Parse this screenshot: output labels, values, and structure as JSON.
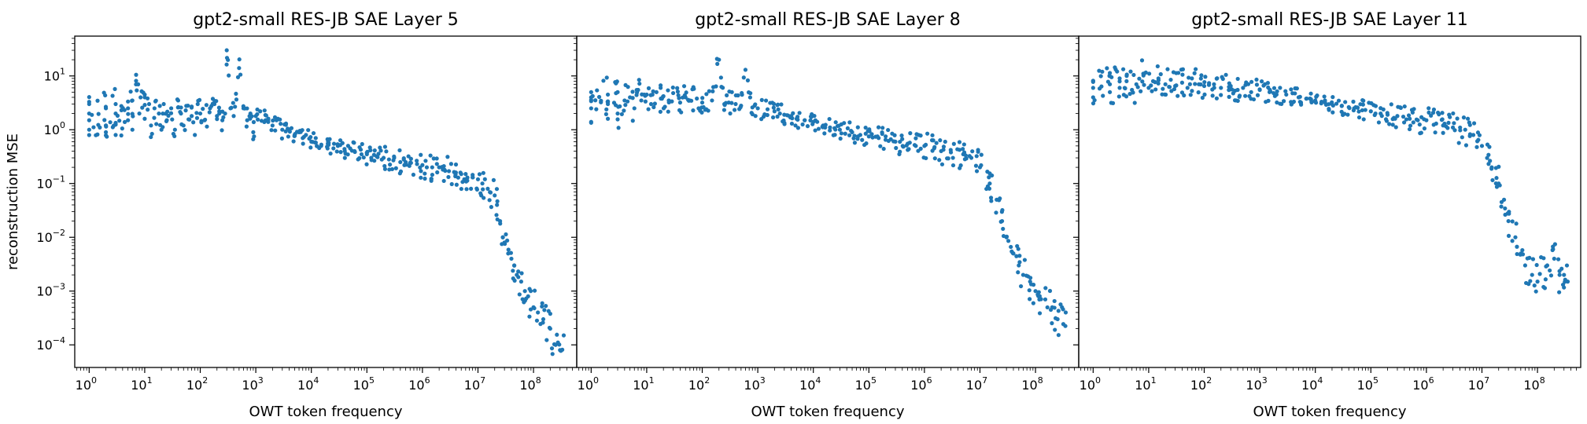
{
  "chart_data": [
    {
      "type": "scatter",
      "title": "gpt2-small RES-JB SAE Layer 5",
      "xlabel": "OWT token frequency",
      "ylabel": "reconstruction MSE",
      "xscale": "log",
      "yscale": "log",
      "xlim": [
        0.55,
        600000000
      ],
      "ylim": [
        3.8e-05,
        55
      ],
      "xticks": [
        {
          "base": "10",
          "exp": "0"
        },
        {
          "base": "10",
          "exp": "1"
        },
        {
          "base": "10",
          "exp": "2"
        },
        {
          "base": "10",
          "exp": "3"
        },
        {
          "base": "10",
          "exp": "4"
        },
        {
          "base": "10",
          "exp": "5"
        },
        {
          "base": "10",
          "exp": "6"
        },
        {
          "base": "10",
          "exp": "7"
        },
        {
          "base": "10",
          "exp": "8"
        }
      ],
      "yticks": [
        {
          "base": "10",
          "exp": "1"
        },
        {
          "base": "10",
          "exp": "0"
        },
        {
          "base": "10",
          "exp": "−1"
        },
        {
          "base": "10",
          "exp": "−2"
        },
        {
          "base": "10",
          "exp": "−3"
        },
        {
          "base": "10",
          "exp": "−4"
        }
      ],
      "color": "#1f77b4",
      "grid": false,
      "series": [
        {
          "x": [
            1,
            1,
            1,
            1,
            2,
            2,
            2,
            3,
            3,
            3,
            5,
            5,
            6,
            6,
            7,
            8,
            10,
            10,
            12,
            13,
            15,
            18,
            20,
            22,
            25,
            30,
            35,
            40,
            45,
            50,
            60,
            70,
            80,
            90,
            100,
            120,
            150,
            180,
            200,
            220,
            250,
            280,
            300,
            350,
            400,
            500,
            600,
            700,
            800,
            900,
            1000,
            1200,
            1500,
            2000,
            2500,
            3000,
            3500,
            4000,
            5000,
            6000,
            7000,
            8000,
            10000,
            12000,
            15000,
            20000,
            25000,
            30000,
            40000,
            50000,
            60000,
            80000,
            100000,
            120000,
            150000,
            200000,
            250000,
            300000,
            400000,
            500000,
            600000,
            800000,
            1000000,
            1200000,
            1500000,
            2000000,
            2500000,
            3000000,
            4000000,
            5000000,
            6000000,
            8000000,
            10000000,
            12000000,
            15000000,
            20000000,
            22000000,
            25000000,
            28000000,
            30000000,
            35000000,
            40000000,
            45000000,
            50000000,
            60000000,
            70000000,
            80000000,
            100000000,
            120000000,
            150000000,
            200000000,
            250000000,
            300000000,
            350000000
          ],
          "y": [
            3.0,
            2.0,
            1.5,
            1.0,
            2.5,
            1.2,
            0.9,
            3.0,
            2.0,
            0.8,
            2.5,
            1.5,
            3.5,
            1.0,
            10.5,
            2.0,
            4.0,
            1.6,
            3.0,
            1.2,
            2.5,
            2.0,
            1.0,
            3.0,
            1.5,
            2.5,
            1.0,
            3.5,
            2.0,
            1.2,
            2.8,
            1.8,
            0.8,
            3.0,
            2.0,
            1.5,
            2.5,
            3.0,
            1.8,
            2.2,
            1.5,
            2.0,
            30.0,
            2.5,
            1.8,
            14.0,
            2.5,
            1.5,
            2.0,
            0.9,
            1.8,
            2.2,
            1.5,
            1.2,
            1.6,
            1.0,
            1.3,
            1.0,
            0.8,
            0.9,
            0.7,
            0.8,
            0.6,
            0.7,
            0.5,
            0.6,
            0.45,
            0.5,
            0.4,
            0.45,
            0.4,
            0.35,
            0.35,
            0.3,
            0.32,
            0.3,
            0.28,
            0.27,
            0.25,
            0.25,
            0.24,
            0.23,
            0.22,
            0.2,
            0.2,
            0.2,
            0.18,
            0.17,
            0.16,
            0.15,
            0.15,
            0.13,
            0.12,
            0.1,
            0.08,
            0.06,
            0.04,
            0.02,
            0.01,
            0.008,
            0.005,
            0.004,
            0.003,
            0.002,
            0.0015,
            0.001,
            0.0008,
            0.0005,
            0.0004,
            0.0003,
            0.0002,
            0.0001,
            8e-05,
            0.00015
          ]
        }
      ]
    },
    {
      "type": "scatter",
      "title": "gpt2-small RES-JB SAE Layer 8",
      "xlabel": "OWT token frequency",
      "ylabel": "",
      "xscale": "log",
      "yscale": "log",
      "xlim": [
        0.55,
        600000000
      ],
      "ylim": [
        3.8e-05,
        55
      ],
      "xticks": [
        {
          "base": "10",
          "exp": "0"
        },
        {
          "base": "10",
          "exp": "1"
        },
        {
          "base": "10",
          "exp": "2"
        },
        {
          "base": "10",
          "exp": "3"
        },
        {
          "base": "10",
          "exp": "4"
        },
        {
          "base": "10",
          "exp": "5"
        },
        {
          "base": "10",
          "exp": "6"
        },
        {
          "base": "10",
          "exp": "7"
        },
        {
          "base": "10",
          "exp": "8"
        }
      ],
      "color": "#1f77b4",
      "grid": false,
      "series": [
        {
          "x": [
            1,
            1,
            1,
            1,
            2,
            2,
            2,
            3,
            3,
            4,
            5,
            6,
            7,
            8,
            10,
            12,
            15,
            18,
            20,
            25,
            30,
            40,
            50,
            60,
            80,
            100,
            150,
            200,
            250,
            300,
            400,
            500,
            600,
            800,
            1000,
            1500,
            2000,
            2500,
            3000,
            4000,
            5000,
            7000,
            10000,
            15000,
            20000,
            30000,
            50000,
            70000,
            100000,
            150000,
            200000,
            300000,
            500000,
            700000,
            1000000,
            1500000,
            2000000,
            3000000,
            5000000,
            7000000,
            10000000,
            15000000,
            20000000,
            25000000,
            30000000,
            40000000,
            50000000,
            60000000,
            80000000,
            100000000,
            150000000,
            200000000,
            250000000,
            300000000,
            350000000
          ],
          "y": [
            5.0,
            4.0,
            1.4,
            2.5,
            4.5,
            3.0,
            1.6,
            5.0,
            2.0,
            3.5,
            4.0,
            2.5,
            5.5,
            3.5,
            4.5,
            3.0,
            5.0,
            3.8,
            4.2,
            3.5,
            4.8,
            3.2,
            4.0,
            3.5,
            3.8,
            3.2,
            3.5,
            20.0,
            3.0,
            3.2,
            3.0,
            2.8,
            13.0,
            2.6,
            2.5,
            2.4,
            2.2,
            2.0,
            1.9,
            1.8,
            1.6,
            1.5,
            1.4,
            1.2,
            1.1,
            1.0,
            0.9,
            0.8,
            0.75,
            0.7,
            0.65,
            0.6,
            0.55,
            0.5,
            0.5,
            0.45,
            0.4,
            0.38,
            0.35,
            0.3,
            0.2,
            0.1,
            0.05,
            0.02,
            0.01,
            0.005,
            0.003,
            0.002,
            0.0015,
            0.001,
            0.0007,
            0.0005,
            0.0003,
            0.0005,
            0.0004
          ]
        }
      ]
    },
    {
      "type": "scatter",
      "title": "gpt2-small RES-JB SAE Layer 11",
      "xlabel": "OWT token frequency",
      "ylabel": "",
      "xscale": "log",
      "yscale": "log",
      "xlim": [
        0.55,
        600000000
      ],
      "ylim": [
        3.8e-05,
        55
      ],
      "xticks": [
        {
          "base": "10",
          "exp": "0"
        },
        {
          "base": "10",
          "exp": "1"
        },
        {
          "base": "10",
          "exp": "2"
        },
        {
          "base": "10",
          "exp": "3"
        },
        {
          "base": "10",
          "exp": "4"
        },
        {
          "base": "10",
          "exp": "5"
        },
        {
          "base": "10",
          "exp": "6"
        },
        {
          "base": "10",
          "exp": "7"
        },
        {
          "base": "10",
          "exp": "8"
        }
      ],
      "color": "#1f77b4",
      "grid": false,
      "series": [
        {
          "x": [
            1,
            1,
            1,
            2,
            2,
            3,
            3,
            4,
            5,
            6,
            8,
            10,
            12,
            15,
            20,
            25,
            30,
            40,
            50,
            60,
            80,
            100,
            150,
            200,
            300,
            400,
            500,
            700,
            1000,
            1500,
            2000,
            3000,
            5000,
            7000,
            10000,
            15000,
            20000,
            30000,
            50000,
            70000,
            100000,
            150000,
            200000,
            300000,
            500000,
            700000,
            1000000,
            1500000,
            2000000,
            3000000,
            5000000,
            7000000,
            10000000,
            15000000,
            20000000,
            25000000,
            30000000,
            40000000,
            50000000,
            60000000,
            80000000,
            100000000,
            150000000,
            200000000,
            250000000,
            300000000,
            350000000
          ],
          "y": [
            8.0,
            4.0,
            6.0,
            7.0,
            5.0,
            9.0,
            6.0,
            8.0,
            5.5,
            7.0,
            11.0,
            6.0,
            8.0,
            9.0,
            7.0,
            8.5,
            6.5,
            7.5,
            6.0,
            9.0,
            7.0,
            6.5,
            7.0,
            6.0,
            6.5,
            5.5,
            6.0,
            5.0,
            5.5,
            5.0,
            4.5,
            4.5,
            4.0,
            3.8,
            3.5,
            3.2,
            3.0,
            2.8,
            2.5,
            2.3,
            2.2,
            2.0,
            1.9,
            1.8,
            1.6,
            1.5,
            1.5,
            1.3,
            1.2,
            1.1,
            1.0,
            0.8,
            0.5,
            0.2,
            0.1,
            0.05,
            0.02,
            0.01,
            0.005,
            0.003,
            0.002,
            0.0015,
            0.003,
            0.004,
            0.002,
            0.002,
            0.0015
          ]
        }
      ]
    }
  ]
}
